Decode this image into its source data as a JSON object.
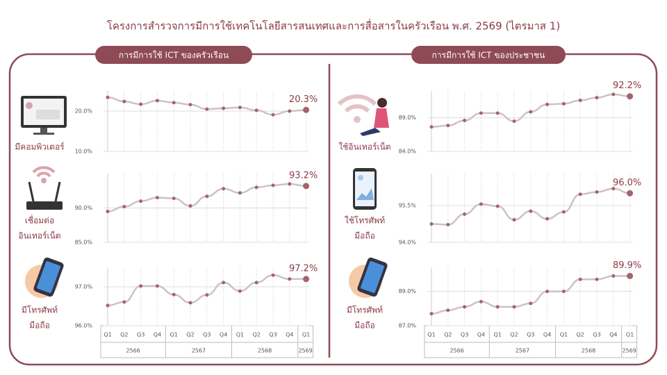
{
  "title": "โครงการสำรวจการมีการใช้เทคโนโลยีสารสนเทศและการสื่อสารในครัวเรือน พ.ศ. 2569 (ไตรมาส 1)",
  "panels": [
    {
      "header": "การมีการใช้ ICT ของครัวเรือน",
      "years": [
        {
          "year": "2566",
          "quarters": [
            "Q1",
            "Q2",
            "Q3",
            "Q4"
          ]
        },
        {
          "year": "2567",
          "quarters": [
            "Q1",
            "Q2",
            "Q3",
            "Q4"
          ]
        },
        {
          "year": "2568",
          "quarters": [
            "Q1",
            "Q2",
            "Q3",
            "Q4"
          ]
        },
        {
          "year": "2569",
          "quarters": [
            "Q1"
          ]
        }
      ]
    },
    {
      "header": "การมีการใช้ ICT ของประชาชน",
      "years": [
        {
          "year": "2566",
          "quarters": [
            "Q1",
            "Q2",
            "Q3",
            "Q4"
          ]
        },
        {
          "year": "2567",
          "quarters": [
            "Q1",
            "Q2",
            "Q3",
            "Q4"
          ]
        },
        {
          "year": "2568",
          "quarters": [
            "Q1",
            "Q2",
            "Q3",
            "Q4"
          ]
        },
        {
          "year": "2569",
          "quarters": [
            "Q1"
          ]
        }
      ]
    }
  ],
  "chart_data": [
    {
      "type": "line",
      "label": [
        "มีคอมพิวเตอร์"
      ],
      "color": "#a5636b",
      "line_color": "#cbc3c3",
      "values": [
        23.4,
        22.4,
        21.7,
        22.6,
        22.1,
        21.6,
        20.5,
        20.7,
        20.9,
        20.2,
        19.1,
        20.0,
        20.3
      ],
      "last_label": "20.3%",
      "ylim": [
        10,
        25
      ],
      "yticks": [
        {
          "value": 10,
          "label": "10.0%"
        },
        {
          "value": 20,
          "label": "20.0%"
        }
      ]
    },
    {
      "type": "line",
      "label": [
        "เชื่อมต่อ",
        "อินเทอร์เน็ต"
      ],
      "color": "#a5636b",
      "line_color": "#cbc3c3",
      "values": [
        89.5,
        90.2,
        91.0,
        91.5,
        91.4,
        90.3,
        91.7,
        92.8,
        92.2,
        93.0,
        93.3,
        93.5,
        93.2
      ],
      "last_label": "93.2%",
      "ylim": [
        85,
        95
      ],
      "yticks": [
        {
          "value": 85,
          "label": "85.0%"
        },
        {
          "value": 90,
          "label": "90.0%"
        }
      ]
    },
    {
      "type": "line",
      "label": [
        "มีโทรศัพท์",
        "มือถือ"
      ],
      "color": "#a5636b",
      "line_color": "#cbc3c3",
      "values": [
        96.52,
        96.61,
        97.02,
        97.02,
        96.8,
        96.59,
        96.79,
        97.11,
        96.89,
        97.11,
        97.3,
        97.2,
        97.2
      ],
      "last_label": "97.2%",
      "ylim": [
        96,
        97.5
      ],
      "yticks": [
        {
          "value": 96,
          "label": "96.0%"
        },
        {
          "value": 97,
          "label": "97.0%"
        }
      ]
    },
    {
      "type": "line",
      "label": [
        "ใช้อินเทอร์เน็ต"
      ],
      "color": "#a5636b",
      "line_color": "#cbc3c3",
      "values": [
        87.65,
        87.85,
        88.6,
        89.7,
        89.7,
        88.5,
        89.9,
        91.0,
        91.1,
        91.6,
        92.0,
        92.5,
        92.2
      ],
      "last_label": "92.2%",
      "ylim": [
        84,
        93
      ],
      "yticks": [
        {
          "value": 84,
          "label": "84.0%"
        },
        {
          "value": 89,
          "label": "89.0%"
        }
      ]
    },
    {
      "type": "line",
      "label": [
        "ใช้โทรศัพท์",
        "มือถือ"
      ],
      "color": "#a5636b",
      "line_color": "#cbc3c3",
      "values": [
        94.75,
        94.72,
        95.15,
        95.56,
        95.47,
        94.92,
        95.27,
        94.96,
        95.24,
        95.96,
        96.05,
        96.19,
        96.0
      ],
      "last_label": "96.0%",
      "ylim": [
        94,
        96.8
      ],
      "yticks": [
        {
          "value": 94,
          "label": "94.0%"
        },
        {
          "value": 95.5,
          "label": "95.5%"
        }
      ]
    },
    {
      "type": "line",
      "label": [
        "มีโทรศัพท์",
        "มือถือ"
      ],
      "color": "#a5636b",
      "line_color": "#cbc3c3",
      "values": [
        87.7,
        87.9,
        88.1,
        88.4,
        88.1,
        88.1,
        88.3,
        89.0,
        89.0,
        89.7,
        89.7,
        89.9,
        89.9
      ],
      "last_label": "89.9%",
      "ylim": [
        87,
        90.4
      ],
      "yticks": [
        {
          "value": 87,
          "label": "87.0%"
        },
        {
          "value": 89,
          "label": "89.0%"
        }
      ]
    }
  ]
}
